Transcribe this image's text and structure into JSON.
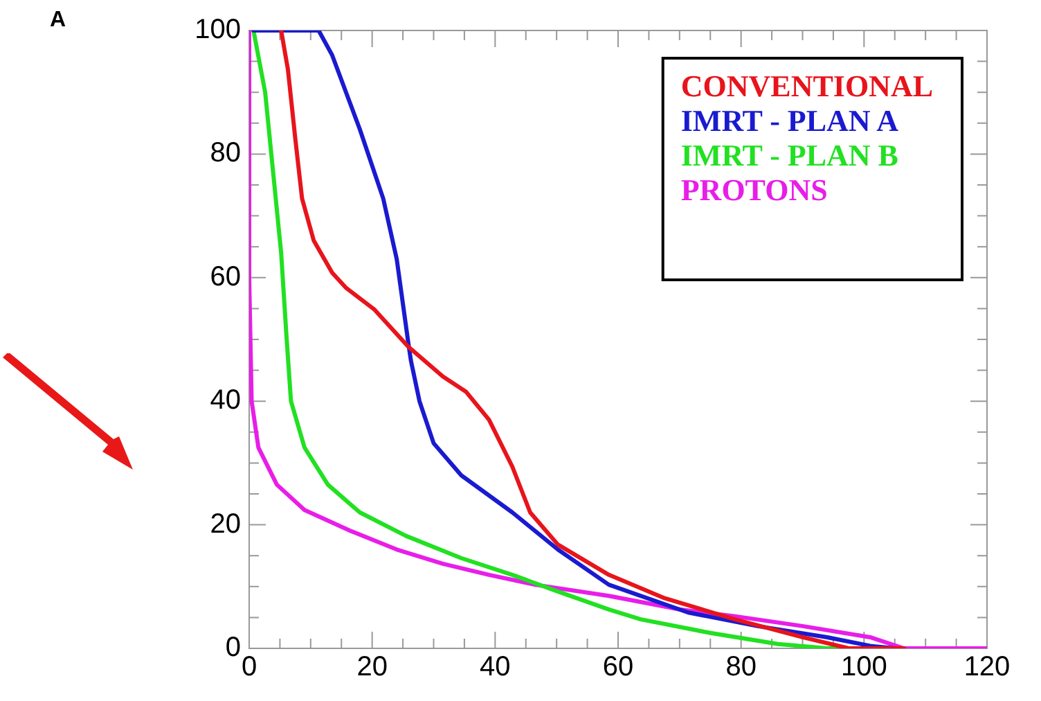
{
  "chart_data": {
    "type": "line",
    "annotations": [
      "A"
    ],
    "xlim": [
      0,
      120
    ],
    "xticks": [
      0,
      20,
      40,
      60,
      80,
      100,
      120
    ],
    "ylim": [
      0,
      100
    ],
    "yticks": [
      0,
      20,
      40,
      60,
      80,
      100
    ],
    "grid": false,
    "legend": "top right",
    "marker": "none",
    "line_style": "solid",
    "series": [
      {
        "name": "CONVENTIONAL",
        "color": "#e8141c",
        "x": [
          5.2,
          6.3,
          7.5,
          8.6,
          10.5,
          13.5,
          15.8,
          20.3,
          25.9,
          31.5,
          35.3,
          39,
          42.8,
          45.7,
          50.2,
          58.5,
          67.6,
          79,
          90,
          97.5,
          106.5
        ],
        "values": [
          100,
          93.7,
          82.5,
          72.8,
          66,
          60.8,
          58.3,
          54.9,
          48.8,
          44,
          41.5,
          37,
          29.4,
          22,
          16.8,
          11.9,
          8.1,
          4.7,
          1.8,
          0,
          0
        ]
      },
      {
        "name": "IMRT - PLAN A",
        "color": "#1a1ad0",
        "x": [
          0.7,
          11.3,
          13.5,
          18,
          21.8,
          24,
          25.9,
          26.3,
          27.7,
          30,
          34.5,
          42.8,
          50.2,
          58.5,
          71.4,
          82.7,
          94,
          101,
          105,
          106.5
        ],
        "values": [
          100,
          100,
          96,
          84,
          72.8,
          63,
          49.3,
          46.6,
          40,
          33.2,
          28,
          22,
          16,
          10.3,
          5.8,
          3.6,
          1.8,
          0.4,
          0,
          0
        ]
      },
      {
        "name": "IMRT - PLAN B",
        "color": "#22e022",
        "x": [
          0.7,
          2.6,
          4.1,
          5.2,
          6.1,
          6.8,
          9,
          12.8,
          18,
          25.5,
          34.5,
          42.8,
          50.2,
          58.5,
          63.7,
          75,
          86,
          94,
          106.5
        ],
        "values": [
          100,
          90,
          75,
          64,
          50,
          40,
          32.5,
          26.5,
          22,
          18.2,
          14.6,
          11.9,
          9.2,
          6.3,
          4.7,
          2.5,
          0.7,
          0,
          0
        ]
      },
      {
        "name": "PROTONS",
        "color": "#e81ee8",
        "x": [
          0,
          0,
          0.4,
          1.5,
          4.5,
          9,
          16.5,
          24,
          31.5,
          39,
          46.5,
          58.5,
          70,
          79,
          90,
          101,
          106.5,
          120
        ],
        "values": [
          100,
          60,
          40,
          32.5,
          26.5,
          22.4,
          19,
          16,
          13.7,
          11.9,
          10.3,
          8.5,
          6.3,
          5.2,
          3.6,
          1.8,
          0,
          0
        ]
      }
    ]
  }
}
